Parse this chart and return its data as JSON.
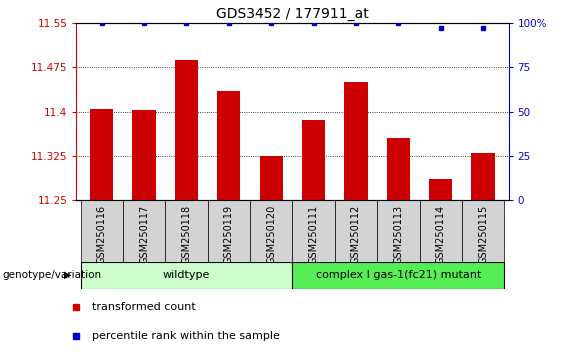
{
  "title": "GDS3452 / 177911_at",
  "samples": [
    "GSM250116",
    "GSM250117",
    "GSM250118",
    "GSM250119",
    "GSM250120",
    "GSM250111",
    "GSM250112",
    "GSM250113",
    "GSM250114",
    "GSM250115"
  ],
  "bar_values": [
    11.405,
    11.402,
    11.488,
    11.435,
    11.325,
    11.385,
    11.45,
    11.355,
    11.285,
    11.33
  ],
  "percentile_values": [
    100,
    100,
    100,
    100,
    100,
    100,
    100,
    100,
    97,
    97
  ],
  "ylim": [
    11.25,
    11.55
  ],
  "yticks": [
    11.25,
    11.325,
    11.4,
    11.475,
    11.55
  ],
  "ytick_labels": [
    "11.25",
    "11.325",
    "11.4",
    "11.475",
    "11.55"
  ],
  "y2lim": [
    0,
    100
  ],
  "y2ticks": [
    0,
    25,
    50,
    75,
    100
  ],
  "y2tick_labels": [
    "0",
    "25",
    "50",
    "75",
    "100%"
  ],
  "bar_color": "#cc0000",
  "dot_color": "#0000cc",
  "grid_color": "#000000",
  "wildtype_label": "wildtype",
  "mutant_label": "complex I gas-1(fc21) mutant",
  "wildtype_color": "#ccffcc",
  "mutant_color": "#55ee55",
  "genotype_label": "genotype/variation",
  "legend_bar_label": "transformed count",
  "legend_dot_label": "percentile rank within the sample",
  "wildtype_count": 5,
  "mutant_count": 5,
  "title_fontsize": 10,
  "tick_fontsize": 7.5,
  "sample_fontsize": 7,
  "bg_color": "#ffffff"
}
